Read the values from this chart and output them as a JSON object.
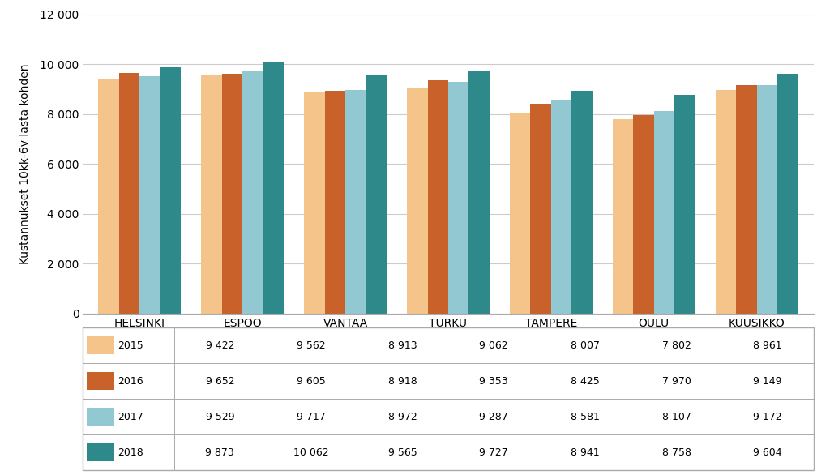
{
  "categories": [
    "HELSINKI",
    "ESPOO",
    "VANTAA",
    "TURKU",
    "TAMPERE",
    "OULU",
    "KUUSIKKO"
  ],
  "years": [
    "2015",
    "2016",
    "2017",
    "2018"
  ],
  "values": {
    "2015": [
      9422,
      9562,
      8913,
      9062,
      8007,
      7802,
      8961
    ],
    "2016": [
      9652,
      9605,
      8918,
      9353,
      8425,
      7970,
      9149
    ],
    "2017": [
      9529,
      9717,
      8972,
      9287,
      8581,
      8107,
      9172
    ],
    "2018": [
      9873,
      10062,
      9565,
      9727,
      8941,
      8758,
      9604
    ]
  },
  "colors": {
    "2015": "#F5C48A",
    "2016": "#C8622A",
    "2017": "#92C8D2",
    "2018": "#2E8A8A"
  },
  "ylabel": "Kustannukset 10kk-6v lasta kohden",
  "ylim": [
    0,
    12000
  ],
  "yticks": [
    0,
    2000,
    4000,
    6000,
    8000,
    10000,
    12000
  ],
  "bar_width": 0.2,
  "background_color": "#ffffff",
  "legend_table": [
    [
      "2015",
      9422,
      9562,
      8913,
      9062,
      8007,
      7802,
      8961
    ],
    [
      "2016",
      9652,
      9605,
      8918,
      9353,
      8425,
      7970,
      9149
    ],
    [
      "2017",
      9529,
      9717,
      8972,
      9287,
      8581,
      8107,
      9172
    ],
    [
      "2018",
      9873,
      10062,
      9565,
      9727,
      8941,
      8758,
      9604
    ]
  ]
}
